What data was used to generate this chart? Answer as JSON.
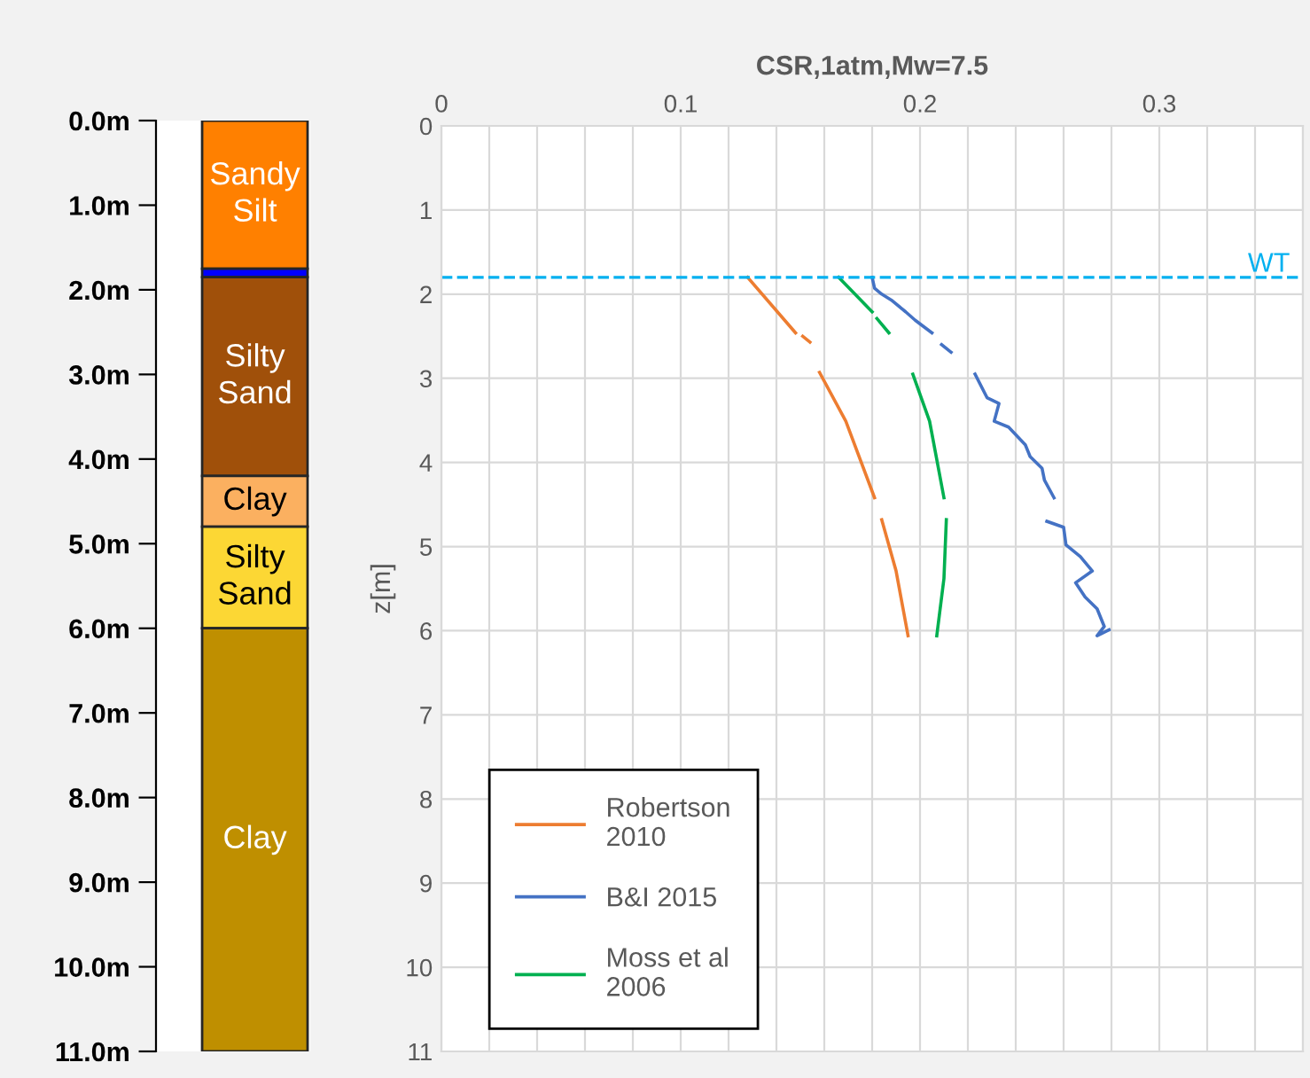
{
  "chart_data": [
    {
      "type": "bar",
      "stacked": true,
      "categories": [
        null
      ],
      "tick_labels": "y",
      "grid": false,
      "legend": false,
      "ylim": [
        11,
        0
      ],
      "yticks": [
        {
          "value": 0,
          "label": "0.0m"
        },
        {
          "value": 1,
          "label": "1.0m"
        },
        {
          "value": 2,
          "label": "2.0m"
        },
        {
          "value": 3,
          "label": "3.0m"
        },
        {
          "value": 4,
          "label": "4.0m"
        },
        {
          "value": 5,
          "label": "5.0m"
        },
        {
          "value": 6,
          "label": "6.0m"
        },
        {
          "value": 7,
          "label": "7.0m"
        },
        {
          "value": 8,
          "label": "8.0m"
        },
        {
          "value": 9,
          "label": "9.0m"
        },
        {
          "value": 10,
          "label": "10.0m"
        },
        {
          "value": 11,
          "label": "11.0m"
        }
      ],
      "series": [
        {
          "name": "Sandy\nSilt",
          "color": "#ff8000",
          "values": [
            1.75
          ]
        },
        {
          "color": "#0000ff",
          "values": [
            0.1
          ]
        },
        {
          "name": "Silty\nSand",
          "color": "#a0500a",
          "values": [
            2.35
          ]
        },
        {
          "name": "Clay",
          "color": "#fbb060",
          "values": [
            0.6
          ]
        },
        {
          "name": "Silty\nSand",
          "color": "#fcd734",
          "values": [
            1.2
          ]
        },
        {
          "name": "Clay",
          "color": "#bf8f00",
          "values": [
            5.0
          ]
        }
      ]
    },
    {
      "type": "line",
      "xlabel": "CSR,1atm,Mw=7.5",
      "ylabel": "z[m]",
      "grid": true,
      "legend": "bottom left",
      "marker": "none",
      "line_style": "solid",
      "xlim": [
        0,
        0.36
      ],
      "xticks": [
        0,
        {
          "value": 0.02,
          "label": null
        },
        {
          "value": 0.04,
          "label": null
        },
        {
          "value": 0.06,
          "label": null
        },
        {
          "value": 0.08,
          "label": null
        },
        0.1,
        {
          "value": 0.12,
          "label": null
        },
        {
          "value": 0.14,
          "label": null
        },
        {
          "value": 0.16,
          "label": null
        },
        {
          "value": 0.18,
          "label": null
        },
        0.2,
        {
          "value": 0.22,
          "label": null
        },
        {
          "value": 0.24,
          "label": null
        },
        {
          "value": 0.26,
          "label": null
        },
        {
          "value": 0.28,
          "label": null
        },
        0.3,
        {
          "value": 0.32,
          "label": null
        },
        {
          "value": 0.34,
          "label": null
        },
        {
          "value": 0.36,
          "label": null
        }
      ],
      "ylim": [
        11,
        0
      ],
      "yticks": [
        0,
        1,
        2,
        3,
        4,
        5,
        6,
        7,
        8,
        9,
        10,
        11
      ],
      "ref_lines": [
        {
          "axis": "y",
          "value": 1.8,
          "label": "WT",
          "color": "#00b0f0",
          "line_style": "dashed"
        }
      ],
      "series": [
        {
          "name": "Robertson\n2010",
          "color": "#ed7d31",
          "x": [
            0.128,
            0.148,
            null,
            0.151,
            0.154,
            null,
            0.158,
            0.169,
            0.181,
            null,
            0.184,
            0.19,
            0.195
          ],
          "values": [
            1.8,
            2.46,
            null,
            2.5,
            2.57,
            null,
            2.93,
            3.51,
            4.42,
            null,
            4.68,
            5.29,
            6.06
          ]
        },
        {
          "name": "B&I 2015",
          "color": "#4472c4",
          "x": [
            0.18,
            0.181,
            0.184,
            0.188,
            0.194,
            0.198,
            0.205,
            null,
            0.209,
            0.213,
            null,
            0.223,
            0.228,
            0.233,
            0.231,
            0.237,
            0.244,
            0.246,
            0.251,
            0.252,
            0.256,
            null,
            0.253,
            0.26,
            0.261,
            0.267,
            0.272,
            0.265,
            0.269,
            0.274,
            0.277,
            0.274,
            0.279
          ],
          "values": [
            1.8,
            1.93,
            2.0,
            2.07,
            2.21,
            2.31,
            2.46,
            null,
            2.6,
            2.69,
            null,
            2.95,
            3.23,
            3.3,
            3.51,
            3.58,
            3.79,
            3.93,
            4.07,
            4.21,
            4.42,
            null,
            4.7,
            4.77,
            4.98,
            5.12,
            5.29,
            5.43,
            5.6,
            5.74,
            5.95,
            6.06,
            5.99
          ]
        },
        {
          "name": "Moss et al\n2006",
          "color": "#00b050",
          "x": [
            0.166,
            0.18,
            null,
            0.182,
            0.187,
            null,
            0.197,
            0.204,
            0.21,
            null,
            0.211,
            0.21,
            0.207
          ],
          "values": [
            1.8,
            2.21,
            null,
            2.29,
            2.46,
            null,
            2.95,
            3.51,
            4.42,
            null,
            4.68,
            5.38,
            6.06
          ]
        }
      ]
    }
  ]
}
